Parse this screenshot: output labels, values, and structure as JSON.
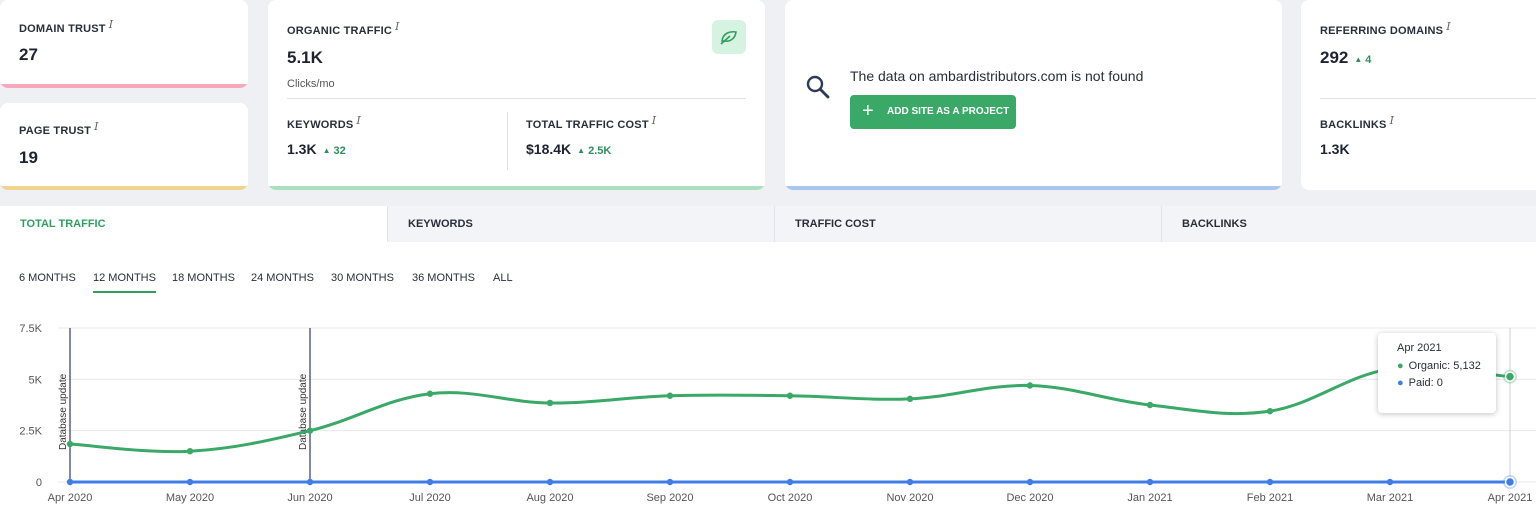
{
  "cards": {
    "domain_trust": {
      "label": "DOMAIN TRUST",
      "value": "27",
      "color": "#f7a8bd"
    },
    "page_trust": {
      "label": "PAGE TRUST",
      "value": "19",
      "color": "#f0d48d"
    },
    "organic": {
      "label": "ORGANIC TRAFFIC",
      "value": "5.1K",
      "unit": "Clicks/mo",
      "color": "#a9e0bf",
      "keywords": {
        "label": "KEYWORDS",
        "value": "1.3K",
        "delta": "32"
      },
      "cost": {
        "label": "TOTAL TRAFFIC COST",
        "value": "$18.4K",
        "delta": "2.5K"
      }
    },
    "notfound": {
      "message": "The data on ambardistributors.com is not found",
      "button": "ADD SITE AS A PROJECT",
      "color": "#a9c6f0"
    },
    "referring": {
      "label": "REFERRING DOMAINS",
      "value": "292",
      "delta": "4"
    },
    "backlinks": {
      "label": "BACKLINKS",
      "value": "1.3K"
    }
  },
  "tabs": [
    "TOTAL TRAFFIC",
    "KEYWORDS",
    "TRAFFIC COST",
    "BACKLINKS"
  ],
  "periods": [
    "6 MONTHS",
    "12 MONTHS",
    "18 MONTHS",
    "24 MONTHS",
    "30 MONTHS",
    "36 MONTHS",
    "ALL"
  ],
  "active_period": "12 MONTHS",
  "chart_data": {
    "type": "line",
    "x": [
      "Apr 2020",
      "May 2020",
      "Jun 2020",
      "Jul 2020",
      "Aug 2020",
      "Sep 2020",
      "Oct 2020",
      "Nov 2020",
      "Dec 2020",
      "Jan 2021",
      "Feb 2021",
      "Mar 2021",
      "Apr 2021"
    ],
    "series": [
      {
        "name": "Organic",
        "color": "#3aa866",
        "values": [
          1850,
          1500,
          2500,
          4300,
          3850,
          4200,
          4200,
          4050,
          4700,
          3750,
          3450,
          5500,
          5132
        ]
      },
      {
        "name": "Paid",
        "color": "#3f7ee6",
        "values": [
          0,
          0,
          0,
          0,
          0,
          0,
          0,
          0,
          0,
          0,
          0,
          0,
          0
        ]
      }
    ],
    "yticks": [
      "0",
      "2.5K",
      "5K",
      "7.5K"
    ],
    "ylim": [
      0,
      7500
    ],
    "annotations": [
      {
        "x": "Apr 2020",
        "text": "Database update"
      },
      {
        "x": "Jun 2020",
        "text": "Database update"
      }
    ],
    "tooltip": {
      "title": "Apr 2021",
      "organic_label": "Organic:",
      "organic_value": "5,132",
      "paid_label": "Paid:",
      "paid_value": "0"
    }
  }
}
